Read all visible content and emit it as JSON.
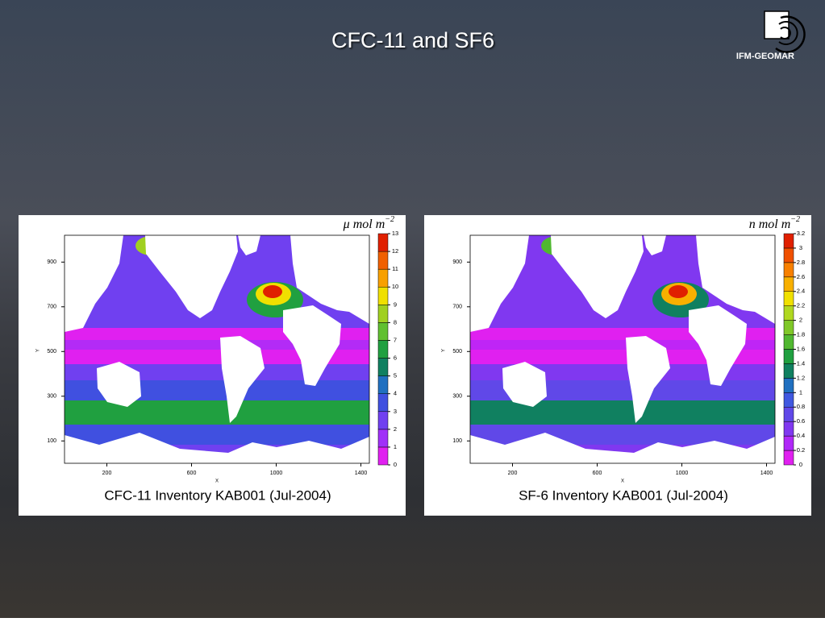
{
  "header": {
    "title": "CFC-11 and SF6",
    "logo": "IFM-GEOMAR"
  },
  "panels": [
    {
      "caption": "CFC-11 Inventory KAB001 (Jul-2004)",
      "unit": "μ mol m",
      "unit_exponent": "−2",
      "x_label": "X",
      "y_label": "Y",
      "x_ticks": [
        200,
        600,
        1000,
        1400
      ],
      "y_ticks": [
        100,
        300,
        500,
        700,
        900
      ],
      "colorbar_ticks": [
        0,
        1,
        2,
        3,
        4,
        5,
        6,
        7,
        8,
        9,
        10,
        11,
        12,
        13
      ],
      "colorbar_colors": [
        "#e020f0",
        "#a030f8",
        "#7040f0",
        "#4050e0",
        "#2070c0",
        "#108060",
        "#20a040",
        "#60c030",
        "#a0d020",
        "#f0e000",
        "#f8a000",
        "#f06000",
        "#e02000"
      ]
    },
    {
      "caption": "SF-6 Inventory KAB001 (Jul-2004)",
      "unit": "n mol m",
      "unit_exponent": "−2",
      "x_label": "X",
      "y_label": "Y",
      "x_ticks": [
        200,
        600,
        1000,
        1400
      ],
      "y_ticks": [
        100,
        300,
        500,
        700,
        900
      ],
      "colorbar_ticks": [
        0,
        0.2,
        0.4,
        0.6,
        0.8,
        1,
        1.2,
        1.4,
        1.6,
        1.8,
        2,
        2.2,
        2.4,
        2.6,
        2.8,
        3,
        3.2
      ],
      "colorbar_colors": [
        "#e020f0",
        "#b028f8",
        "#8038f0",
        "#6048e8",
        "#4058e0",
        "#2070c0",
        "#108060",
        "#20a040",
        "#50b830",
        "#80c828",
        "#b0d820",
        "#f0e000",
        "#f8b000",
        "#f88000",
        "#f05000",
        "#e02000"
      ]
    }
  ]
}
